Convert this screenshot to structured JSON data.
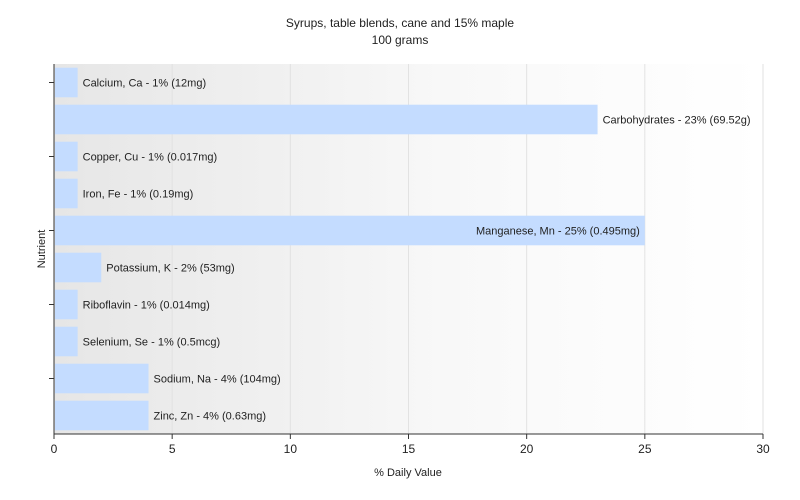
{
  "chart_data": {
    "type": "bar",
    "orientation": "horizontal",
    "title": "Syrups, table blends, cane and 15% maple",
    "subtitle": "100 grams",
    "xlabel": "% Daily Value",
    "ylabel": "Nutrient",
    "xlim": [
      0,
      30
    ],
    "xticks": [
      "0",
      "5",
      "10",
      "15",
      "20",
      "25",
      "30"
    ],
    "categories": [
      "Calcium, Ca",
      "Carbohydrates",
      "Copper, Cu",
      "Iron, Fe",
      "Manganese, Mn",
      "Potassium, K",
      "Riboflavin",
      "Selenium, Se",
      "Sodium, Na",
      "Zinc, Zn"
    ],
    "values": [
      1,
      23,
      1,
      1,
      25,
      2,
      1,
      1,
      4,
      4
    ],
    "labels": [
      "Calcium, Ca - 1% (12mg)",
      "Carbohydrates - 23% (69.52g)",
      "Copper, Cu - 1% (0.017mg)",
      "Iron, Fe - 1% (0.19mg)",
      "Manganese, Mn - 25% (0.495mg)",
      "Potassium, K - 2% (53mg)",
      "Riboflavin - 1% (0.014mg)",
      "Selenium, Se - 1% (0.5mcg)",
      "Sodium, Na - 4% (104mg)",
      "Zinc, Zn - 4% (0.63mg)"
    ],
    "bar_color": "#c4dcff",
    "grid": true,
    "legend": "none"
  }
}
